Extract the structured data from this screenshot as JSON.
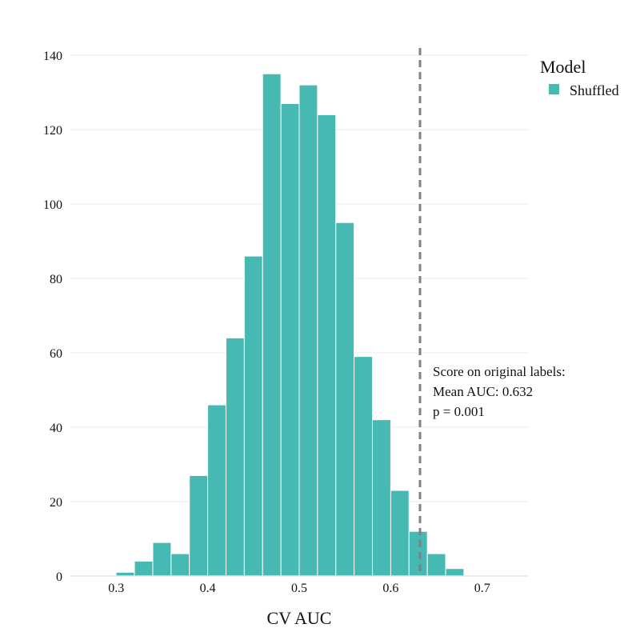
{
  "chart_data": {
    "type": "histogram",
    "title": "",
    "xlabel": "CV AUC",
    "ylabel": "",
    "xlim": [
      0.25,
      0.75
    ],
    "ylim": [
      0,
      140
    ],
    "x_ticks": [
      "0.3",
      "0.4",
      "0.5",
      "0.6",
      "0.7"
    ],
    "x_tick_values": [
      0.3,
      0.4,
      0.5,
      0.6,
      0.7
    ],
    "y_ticks": [
      "0",
      "20",
      "40",
      "60",
      "80",
      "100",
      "120",
      "140"
    ],
    "y_tick_values": [
      0,
      20,
      40,
      60,
      80,
      100,
      120,
      140
    ],
    "grid": "horizontal",
    "bin_width": 0.02,
    "bins": [
      {
        "x0": 0.3,
        "count": 1
      },
      {
        "x0": 0.32,
        "count": 4
      },
      {
        "x0": 0.34,
        "count": 9
      },
      {
        "x0": 0.36,
        "count": 6
      },
      {
        "x0": 0.38,
        "count": 27
      },
      {
        "x0": 0.4,
        "count": 46
      },
      {
        "x0": 0.42,
        "count": 64
      },
      {
        "x0": 0.44,
        "count": 86
      },
      {
        "x0": 0.46,
        "count": 135
      },
      {
        "x0": 0.48,
        "count": 127
      },
      {
        "x0": 0.5,
        "count": 132
      },
      {
        "x0": 0.52,
        "count": 124
      },
      {
        "x0": 0.54,
        "count": 95
      },
      {
        "x0": 0.56,
        "count": 59
      },
      {
        "x0": 0.58,
        "count": 42
      },
      {
        "x0": 0.6,
        "count": 23
      },
      {
        "x0": 0.62,
        "count": 12
      },
      {
        "x0": 0.64,
        "count": 6
      },
      {
        "x0": 0.66,
        "count": 2
      }
    ],
    "series": [
      {
        "name": "Shuffled",
        "color": "#45b9b2"
      }
    ],
    "legend": {
      "title": "Model",
      "position": "top-right"
    },
    "reference_line": {
      "x": 0.632,
      "style": "dashed",
      "color": "#808080"
    },
    "annotation": {
      "lines": [
        "Score on original labels:",
        "Mean AUC: 0.632",
        "p = 0.001"
      ]
    }
  }
}
